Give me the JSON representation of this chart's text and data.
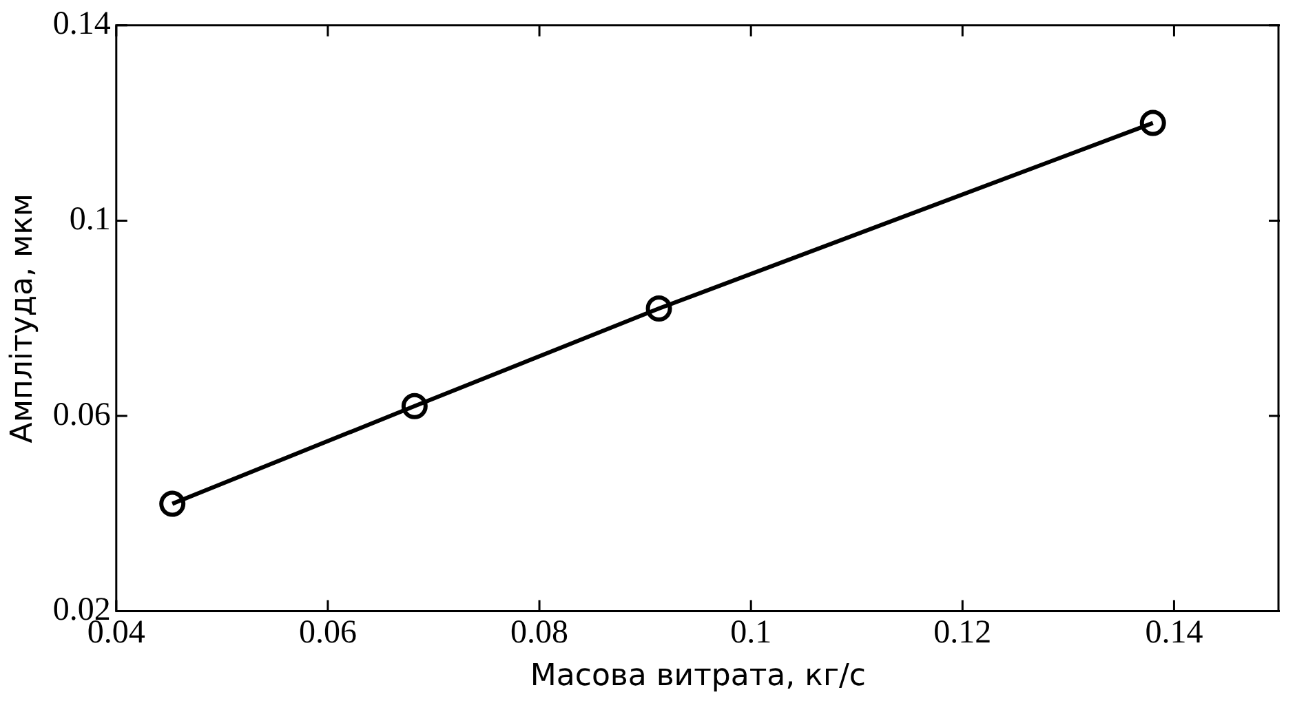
{
  "chart_data": {
    "type": "line",
    "xlabel": "Масова витрата, кг/с",
    "ylabel": "Амплітуда, мкм",
    "x": [
      0.0453,
      0.0682,
      0.0913,
      0.138
    ],
    "values": [
      0.042,
      0.062,
      0.082,
      0.12
    ],
    "color": "#000000",
    "marker": "circle",
    "line_style": "solid",
    "xlim": [
      0.04,
      0.15
    ],
    "xticks": [
      0.04,
      0.06,
      0.08,
      0.1,
      0.12,
      0.14
    ],
    "ylim": [
      0.02,
      0.14
    ],
    "yticks": [
      0.02,
      0.06,
      0.1,
      0.14
    ],
    "grid": false,
    "legend": false
  }
}
